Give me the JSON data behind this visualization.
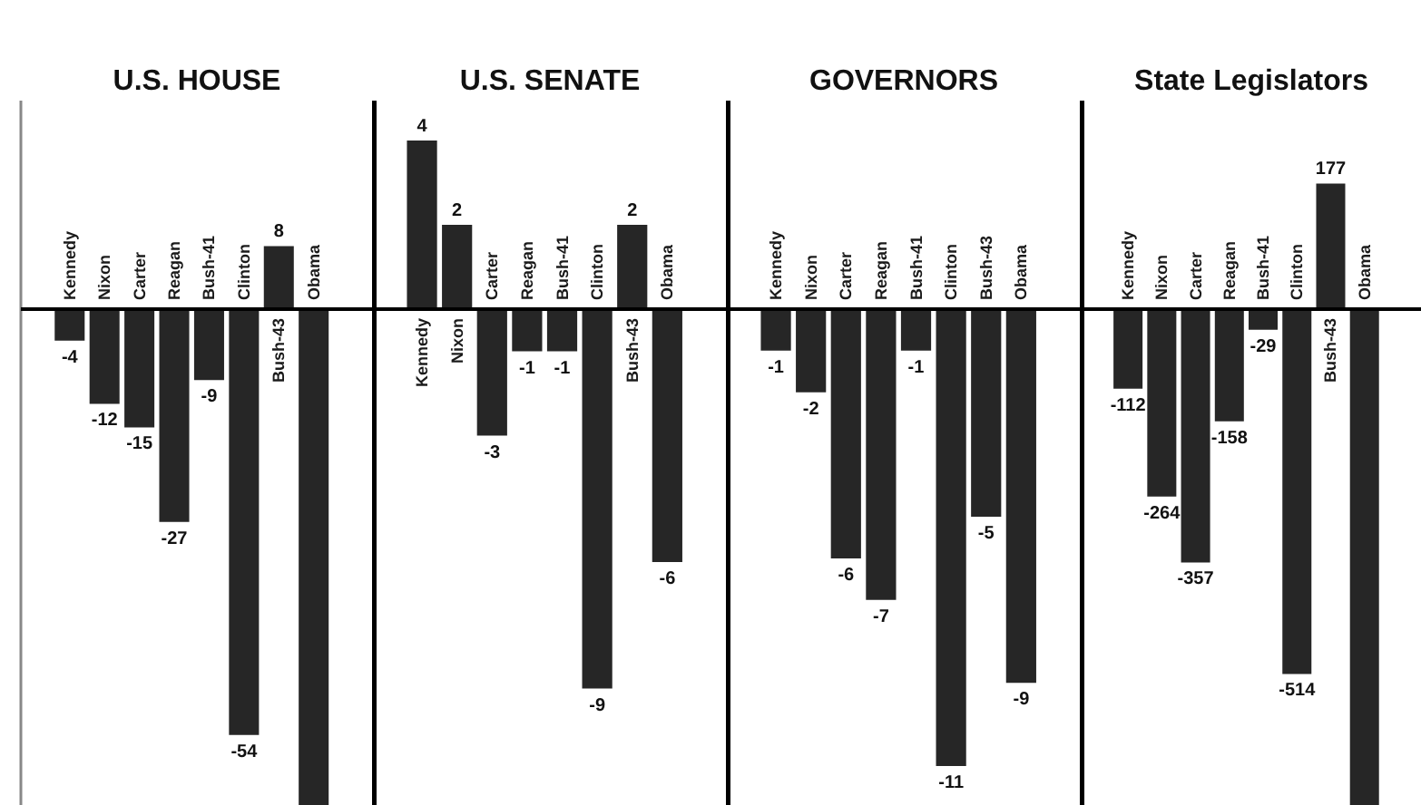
{
  "chart_data": [
    {
      "type": "bar",
      "title": "U.S. HOUSE",
      "categories": [
        "Kennedy",
        "Nixon",
        "Carter",
        "Reagan",
        "Bush-41",
        "Clinton",
        "Bush-43",
        "Obama"
      ],
      "values": [
        -4,
        -12,
        -15,
        -27,
        -9,
        -54,
        8,
        -63
      ],
      "color": "#262626",
      "value_labels": [
        "-4",
        "-12",
        "-15",
        "-27",
        "-9",
        "-54",
        "8",
        null
      ]
    },
    {
      "type": "bar",
      "title": "U.S. SENATE",
      "categories": [
        "Kennedy",
        "Nixon",
        "Carter",
        "Reagan",
        "Bush-41",
        "Clinton",
        "Bush-43",
        "Obama"
      ],
      "values": [
        4,
        2,
        -3,
        -1,
        -1,
        -9,
        2,
        -6
      ],
      "color": "#262626",
      "data_labels": true
    },
    {
      "type": "bar",
      "title": "GOVERNORS",
      "categories": [
        "Kennedy",
        "Nixon",
        "Carter",
        "Reagan",
        "Bush-41",
        "Clinton",
        "Bush-43",
        "Obama"
      ],
      "values": [
        -1,
        -2,
        -6,
        -7,
        -1,
        -11,
        -5,
        -9
      ],
      "color": "#262626",
      "data_labels": true
    },
    {
      "type": "bar",
      "title": "State Legislators",
      "categories": [
        "Kennedy",
        "Nixon",
        "Carter",
        "Reagan",
        "Bush-41",
        "Clinton",
        "Bush-43",
        "Obama"
      ],
      "values": [
        -112,
        -264,
        -357,
        -158,
        -29,
        -514,
        177,
        -700
      ],
      "color": "#262626",
      "value_labels": [
        "-112",
        "-264",
        "-357",
        "-158",
        "-29",
        "-514",
        "177",
        null
      ]
    }
  ]
}
